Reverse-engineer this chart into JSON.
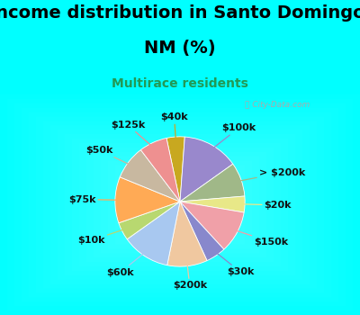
{
  "title_line1": "Income distribution in Santo Domingo,",
  "title_line2": "NM (%)",
  "subtitle": "Multirace residents",
  "bg_color": "#00ffff",
  "chart_bg_color": "#e0f0e8",
  "title_fontsize": 14,
  "subtitle_fontsize": 10,
  "label_fontsize": 8,
  "watermark": "City-Data.com",
  "segments": [
    {
      "label": "$40k",
      "value": 4.5,
      "color": "#c8a820"
    },
    {
      "label": "$100k",
      "value": 14.0,
      "color": "#9988cc"
    },
    {
      "label": "> $200k",
      "value": 8.5,
      "color": "#a0b888"
    },
    {
      "label": "$20k",
      "value": 4.0,
      "color": "#e8e888"
    },
    {
      "label": "$150k",
      "value": 10.5,
      "color": "#f0a0a8"
    },
    {
      "label": "$30k",
      "value": 5.0,
      "color": "#8888cc"
    },
    {
      "label": "$200k",
      "value": 10.0,
      "color": "#f0c8a0"
    },
    {
      "label": "$60k",
      "value": 12.0,
      "color": "#a8c8f0"
    },
    {
      "label": "$10k",
      "value": 4.5,
      "color": "#b8d870"
    },
    {
      "label": "$75k",
      "value": 11.5,
      "color": "#ffaa55"
    },
    {
      "label": "$50k",
      "value": 8.5,
      "color": "#c8b8a0"
    },
    {
      "label": "$125k",
      "value": 7.0,
      "color": "#ee9090"
    }
  ],
  "start_angle": 102,
  "counterclock": false
}
